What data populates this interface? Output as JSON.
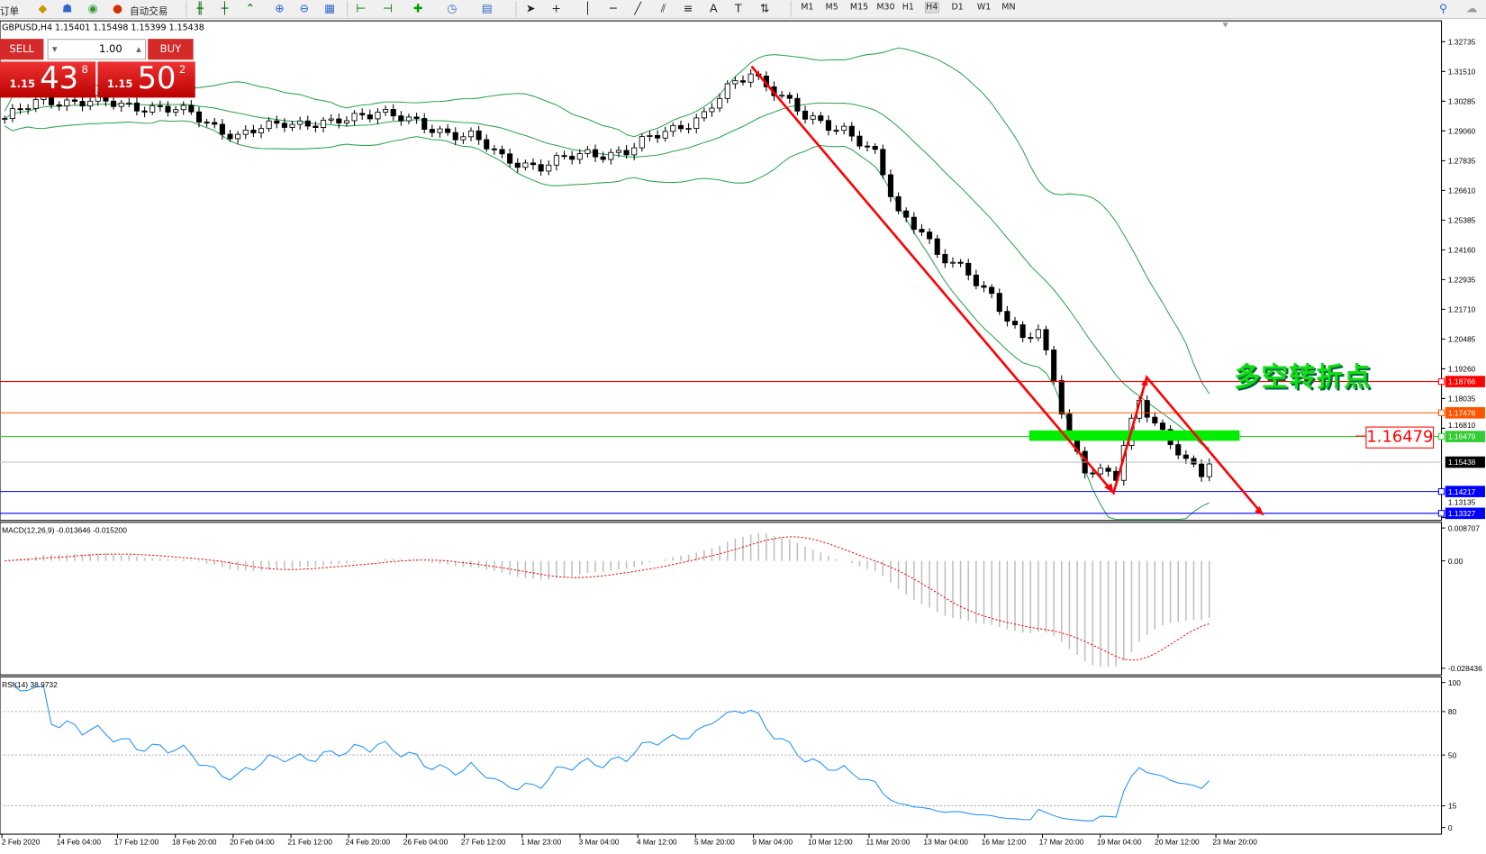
{
  "toolbar": {
    "new_order": "订单",
    "auto_trading": "自动交易",
    "timeframes": [
      "M1",
      "M5",
      "M15",
      "M30",
      "H1",
      "H4",
      "D1",
      "W1",
      "MN"
    ],
    "active_timeframe": "H4"
  },
  "chart": {
    "header": "GBPUSD,H4  1.15401 1.15498 1.15399 1.15438",
    "symbol": "GBPUSD",
    "timeframe": "H4"
  },
  "trade": {
    "sell_label": "SELL",
    "buy_label": "BUY",
    "lots": "1.00",
    "sell": {
      "big": "1.15",
      "main": "43",
      "pip": "8"
    },
    "buy": {
      "big": "1.15",
      "main": "50",
      "pip": "2"
    }
  },
  "annotation": {
    "text": "多空转折点",
    "box_value": "1.16479",
    "color": "#11dd11"
  },
  "price_axis": [
    "1.32735",
    "1.31510",
    "1.30285",
    "1.29060",
    "1.27835",
    "1.26610",
    "1.25385",
    "1.24160",
    "1.22935",
    "1.21710",
    "1.20485",
    "1.19260",
    "1.18035",
    "1.16810",
    "1.13135"
  ],
  "hlines": [
    {
      "value": "1.18766",
      "color": "#ff0000"
    },
    {
      "value": "1.17476",
      "color": "#ff5500"
    },
    {
      "value": "1.16479",
      "color": "#33cc33"
    },
    {
      "value": "1.15438",
      "color": "#000000",
      "current": true
    },
    {
      "value": "1.14217",
      "color": "#0000ff"
    },
    {
      "value": "1.13327",
      "color": "#0000ff"
    }
  ],
  "time_axis": [
    "2 Feb 2020",
    "14 Feb 04:00",
    "17 Feb 12:00",
    "18 Feb 20:00",
    "20 Feb 04:00",
    "21 Feb 12:00",
    "24 Feb 20:00",
    "26 Feb 04:00",
    "27 Feb 12:00",
    "1 Mar 23:00",
    "3 Mar 04:00",
    "4 Mar 12:00",
    "5 Mar 20:00",
    "9 Mar 04:00",
    "10 Mar 12:00",
    "11 Mar 20:00",
    "13 Mar 04:00",
    "16 Mar 12:00",
    "17 Mar 20:00",
    "19 Mar 04:00",
    "20 Mar 12:00",
    "23 Mar 20:00"
  ],
  "price_anchors": [
    [
      0,
      1.2957
    ],
    [
      5,
      1.3035
    ],
    [
      11,
      1.3024
    ],
    [
      18,
      1.3008
    ],
    [
      24,
      1.2977
    ],
    [
      30,
      1.2879
    ],
    [
      36,
      1.2946
    ],
    [
      42,
      1.293
    ],
    [
      48,
      1.2996
    ],
    [
      54,
      1.2918
    ],
    [
      60,
      1.2887
    ],
    [
      64,
      1.2789
    ],
    [
      69,
      1.2762
    ],
    [
      75,
      1.2813
    ],
    [
      80,
      1.282
    ],
    [
      85,
      1.2906
    ],
    [
      90,
      1.2969
    ],
    [
      93,
      1.3074
    ],
    [
      96,
      1.3152
    ],
    [
      99,
      1.3074
    ],
    [
      103,
      1.2957
    ],
    [
      108,
      1.2918
    ],
    [
      112,
      1.2801
    ],
    [
      115,
      1.2567
    ],
    [
      118,
      1.2508
    ],
    [
      120,
      1.2391
    ],
    [
      124,
      1.2313
    ],
    [
      127,
      1.2235
    ],
    [
      131,
      1.204
    ],
    [
      133,
      1.2079
    ],
    [
      135,
      1.1883
    ],
    [
      137,
      1.1649
    ],
    [
      139,
      1.1513
    ],
    [
      143,
      1.1473
    ],
    [
      144,
      1.161
    ],
    [
      146,
      1.1805
    ],
    [
      148,
      1.1708
    ],
    [
      152,
      1.1532
    ],
    [
      154,
      1.1493
    ],
    [
      155,
      1.1544
    ]
  ],
  "macd": {
    "label": "MACD(12,26,9) -0.013646 -0.015200",
    "axis": [
      "0.008707",
      "0.00",
      "-0.028436"
    ]
  },
  "rsi": {
    "label": "RSI(14) 38.9732",
    "axis": [
      "100",
      "80",
      "50",
      "15",
      "0"
    ]
  },
  "colors": {
    "bands": "#2ea44f",
    "rsi": "#1e90ff",
    "macd_signal": "#ff0000",
    "arrows": "#ff0000",
    "green_zone": "#00ee00"
  }
}
